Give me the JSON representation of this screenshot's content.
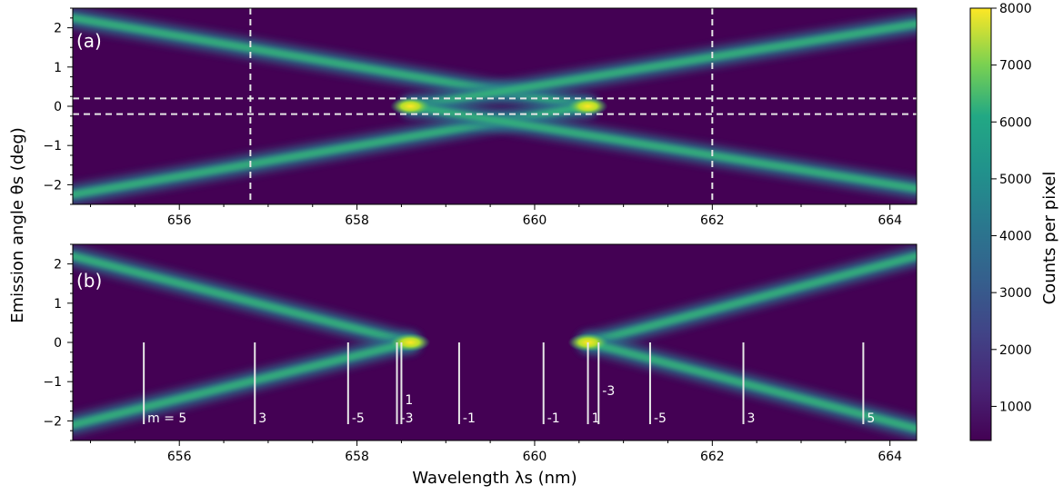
{
  "chart_data": [
    {
      "type": "heatmap",
      "panel_label": "(a)",
      "xlim": [
        654.8,
        664.3
      ],
      "ylim": [
        -2.5,
        2.5
      ],
      "x_ticks": [
        "656",
        "658",
        "660",
        "662",
        "664"
      ],
      "y_ticks": [
        "−2",
        "−1",
        "0",
        "1",
        "2"
      ],
      "bands": [
        {
          "from": [
            654.8,
            2.25
          ],
          "to": [
            660.6,
            0.0
          ]
        },
        {
          "from": [
            654.8,
            -2.25
          ],
          "to": [
            660.6,
            0.0
          ]
        },
        {
          "from": [
            658.6,
            0.0
          ],
          "to": [
            664.3,
            2.1
          ]
        },
        {
          "from": [
            658.6,
            0.0
          ],
          "to": [
            664.3,
            -2.1
          ]
        }
      ],
      "hotspots": [
        {
          "x": 658.6,
          "y": 0.0,
          "counts": 8000
        },
        {
          "x": 660.6,
          "y": 0.0,
          "counts": 8000
        }
      ],
      "dashed_lines": {
        "vertical_x": [
          656.8,
          662.0
        ],
        "horizontal_y": [
          0.2,
          -0.2
        ]
      }
    },
    {
      "type": "heatmap",
      "panel_label": "(b)",
      "xlim": [
        654.8,
        664.3
      ],
      "ylim": [
        -2.5,
        2.5
      ],
      "x_ticks": [
        "656",
        "658",
        "660",
        "662",
        "664"
      ],
      "y_ticks": [
        "−2",
        "−1",
        "0",
        "1",
        "2"
      ],
      "bands": [
        {
          "from": [
            654.8,
            2.2
          ],
          "to": [
            658.6,
            0.0
          ]
        },
        {
          "from": [
            654.8,
            -2.1
          ],
          "to": [
            658.6,
            0.0
          ]
        },
        {
          "from": [
            660.6,
            0.0
          ],
          "to": [
            664.3,
            2.2
          ]
        },
        {
          "from": [
            660.6,
            0.0
          ],
          "to": [
            664.3,
            -2.2
          ]
        }
      ],
      "hotspots": [
        {
          "x": 658.6,
          "y": 0.0,
          "counts": 8000
        },
        {
          "x": 660.6,
          "y": 0.0,
          "counts": 8000
        }
      ],
      "mode_markers": [
        {
          "x": 655.6,
          "label": "m = 5",
          "top": 0.0
        },
        {
          "x": 656.85,
          "label": "3",
          "top": 0.0
        },
        {
          "x": 657.9,
          "label": "-5",
          "top": 0.0
        },
        {
          "x": 658.45,
          "label": "-3",
          "top": 0.0
        },
        {
          "x": 658.5,
          "label": "1",
          "top": 0.0
        },
        {
          "x": 659.15,
          "label": "-1",
          "top": 0.0
        },
        {
          "x": 660.1,
          "label": "-1",
          "top": 0.0
        },
        {
          "x": 660.6,
          "label": "1",
          "top": 0.0
        },
        {
          "x": 660.72,
          "label": "-3",
          "top": 0.0
        },
        {
          "x": 661.3,
          "label": "-5",
          "top": 0.0
        },
        {
          "x": 662.35,
          "label": "3",
          "top": 0.0
        },
        {
          "x": 663.7,
          "label": "5",
          "top": 0.0
        }
      ]
    }
  ],
  "shared": {
    "xlabel": "Wavelength λs (nm)",
    "ylabel": "Emission angle θs (deg)",
    "colorbar": {
      "label": "Counts per pixel",
      "min": 400,
      "max": 8000,
      "ticks": [
        "1000",
        "2000",
        "3000",
        "4000",
        "5000",
        "6000",
        "7000",
        "8000"
      ],
      "colormap": "viridis"
    }
  },
  "colors": {
    "background": "#440154",
    "band_mid": "#2a788e",
    "band_core": "#35b779",
    "hot": "#fde725",
    "markers": "#e8e8e8"
  }
}
